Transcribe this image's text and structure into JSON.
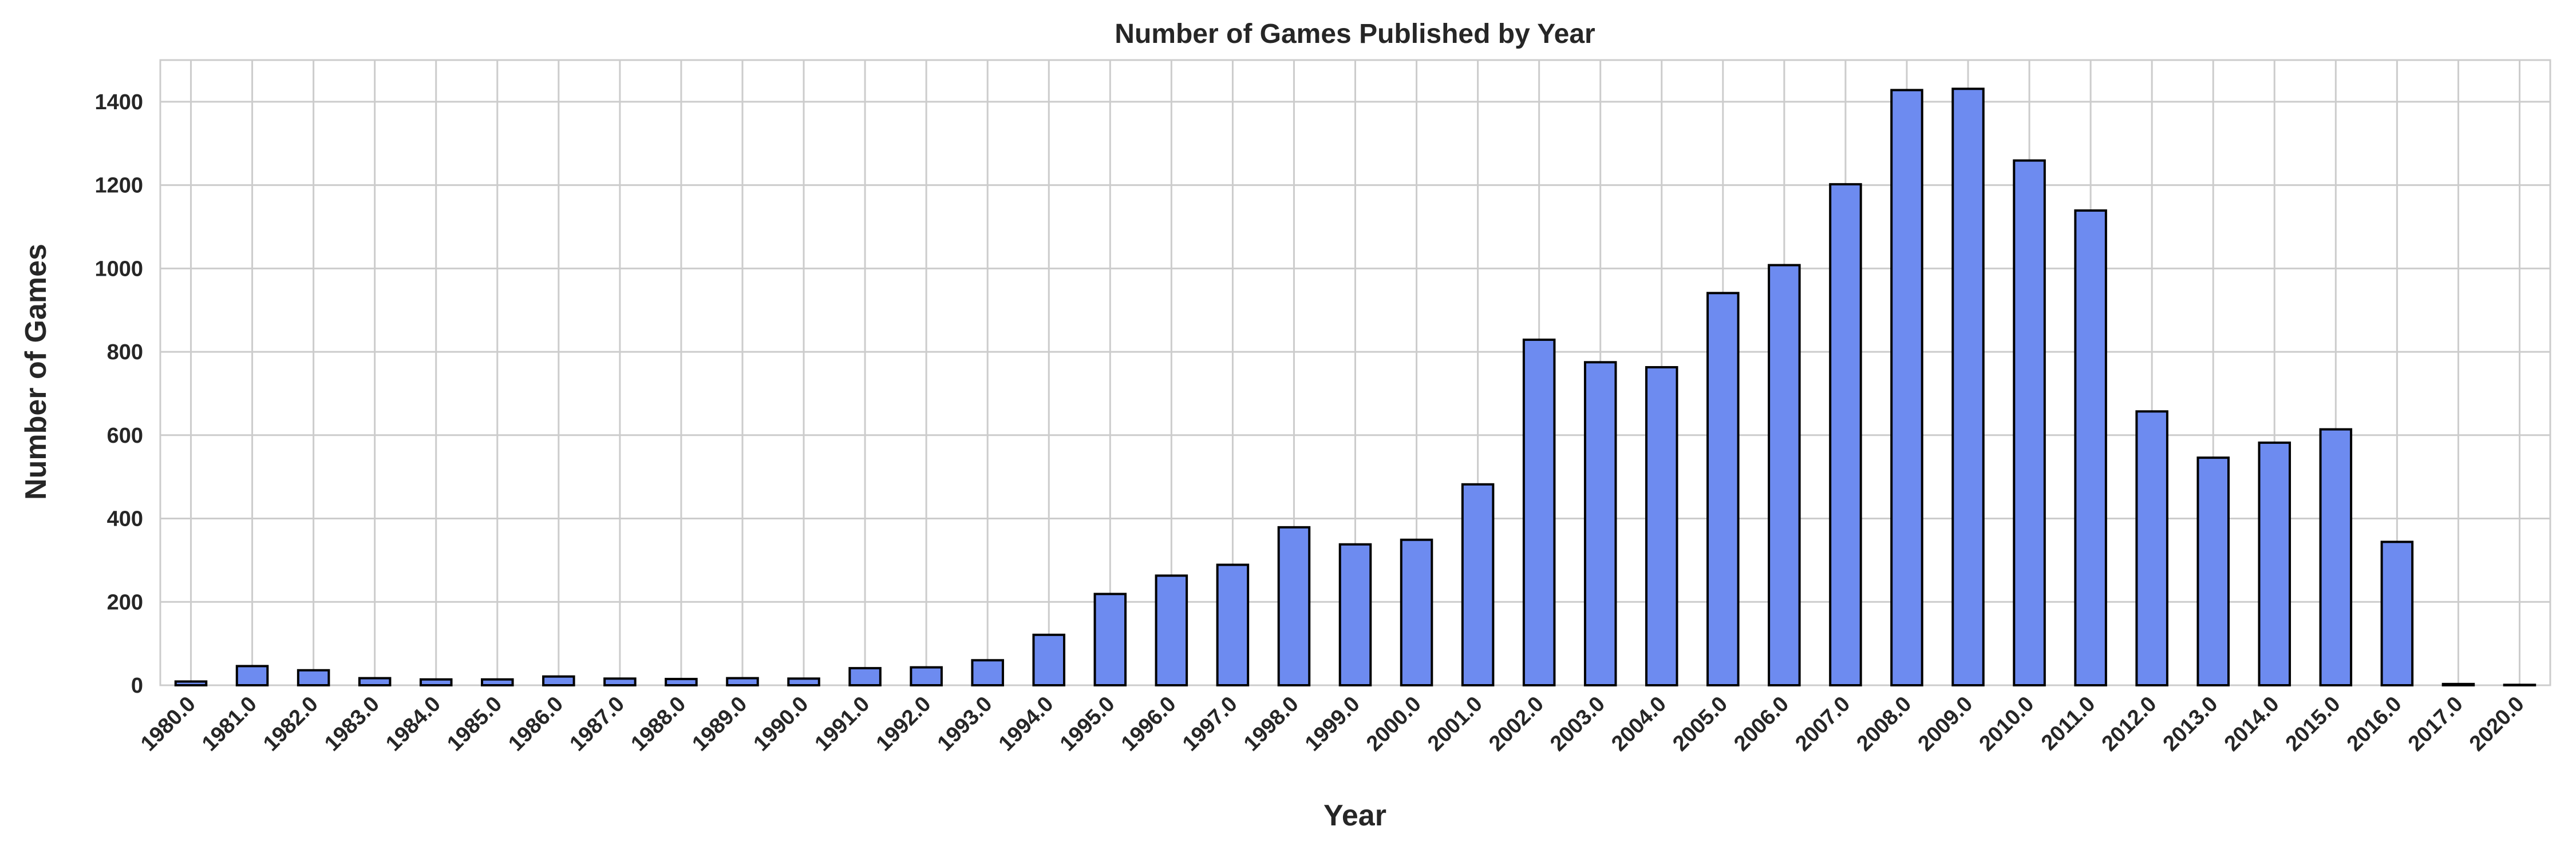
{
  "chart_data": {
    "type": "bar",
    "title": "Number of Games Published by Year",
    "xlabel": "Year",
    "ylabel": "Number of Games",
    "categories": [
      "1980.0",
      "1981.0",
      "1982.0",
      "1983.0",
      "1984.0",
      "1985.0",
      "1986.0",
      "1987.0",
      "1988.0",
      "1989.0",
      "1990.0",
      "1991.0",
      "1992.0",
      "1993.0",
      "1994.0",
      "1995.0",
      "1996.0",
      "1997.0",
      "1998.0",
      "1999.0",
      "2000.0",
      "2001.0",
      "2002.0",
      "2003.0",
      "2004.0",
      "2005.0",
      "2006.0",
      "2007.0",
      "2008.0",
      "2009.0",
      "2010.0",
      "2011.0",
      "2012.0",
      "2013.0",
      "2014.0",
      "2015.0",
      "2016.0",
      "2017.0",
      "2020.0"
    ],
    "values": [
      9,
      46,
      36,
      17,
      14,
      14,
      21,
      16,
      15,
      17,
      16,
      41,
      43,
      60,
      121,
      219,
      263,
      289,
      379,
      338,
      349,
      482,
      829,
      775,
      763,
      941,
      1008,
      1202,
      1428,
      1431,
      1259,
      1139,
      657,
      546,
      582,
      614,
      344,
      3,
      1
    ],
    "yticks": [
      "0",
      "200",
      "400",
      "600",
      "800",
      "1000",
      "1200",
      "1400"
    ],
    "ylim": [
      0,
      1500
    ],
    "grid": true,
    "bar_color": "#6d8bf0",
    "edge_color": "#000000",
    "grid_color": "#cccccc"
  }
}
